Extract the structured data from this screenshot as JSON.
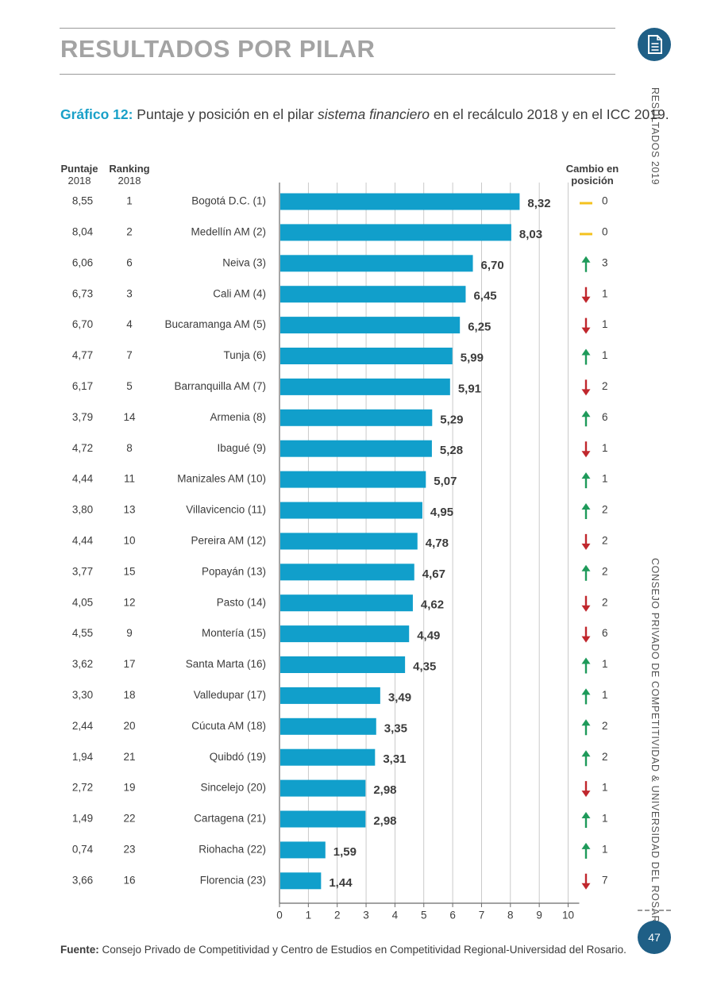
{
  "header": {
    "section_title": "RESULTADOS POR PILAR"
  },
  "caption": {
    "label": "Gráfico 12:",
    "text_before": " Puntaje y posición en el pilar ",
    "text_italic": "sistema financiero",
    "text_after": " en el recálculo 2018 y en el ICC 2019."
  },
  "side": {
    "results": "RESULTADOS  2019",
    "council": "CONSEJO PRIVADO DE COMPETITIVIDAD & UNIVERSIDAD DEL ROSARIO",
    "page_number": "47"
  },
  "columns": {
    "score_title": "Puntaje",
    "score_year": "2018",
    "rank_title": "Ranking",
    "rank_year": "2018",
    "change_line1": "Cambio en",
    "change_line2": "posición"
  },
  "source": {
    "label": "Fuente:",
    "text": " Consejo Privado de Competitividad y Centro de Estudios en Competitividad Regional-Universidad del Rosario."
  },
  "colors": {
    "bar": "#119fcb",
    "up": "#1e9a5a",
    "down": "#c0272d",
    "same": "#f4c21f",
    "accent": "#18a0c8",
    "badge": "#1f5f86"
  },
  "chart_data": {
    "type": "bar",
    "orientation": "horizontal",
    "categories": [
      "Bogotá D.C. (1)",
      "Medellín AM (2)",
      "Neiva (3)",
      "Cali AM (4)",
      "Bucaramanga AM (5)",
      "Tunja (6)",
      "Barranquilla AM (7)",
      "Armenia (8)",
      "Ibagué (9)",
      "Manizales AM (10)",
      "Villavicencio (11)",
      "Pereira AM (12)",
      "Popayán (13)",
      "Pasto (14)",
      "Montería (15)",
      "Santa Marta (16)",
      "Valledupar (17)",
      "Cúcuta AM (18)",
      "Quibdó (19)",
      "Sincelejo (20)",
      "Cartagena (21)",
      "Riohacha (22)",
      "Florencia (23)"
    ],
    "values": [
      8.32,
      8.03,
      6.7,
      6.45,
      6.25,
      5.99,
      5.91,
      5.29,
      5.28,
      5.07,
      4.95,
      4.78,
      4.67,
      4.62,
      4.49,
      4.35,
      3.49,
      3.35,
      3.31,
      2.98,
      2.98,
      1.59,
      1.44
    ],
    "value_labels": [
      "8,32",
      "8,03",
      "6,70",
      "6,45",
      "6,25",
      "5,99",
      "5,91",
      "5,29",
      "5,28",
      "5,07",
      "4,95",
      "4,78",
      "4,67",
      "4,62",
      "4,49",
      "4,35",
      "3,49",
      "3,35",
      "3,31",
      "2,98",
      "2,98",
      "1,59",
      "1,44"
    ],
    "score_2018": [
      "8,55",
      "8,04",
      "6,06",
      "6,73",
      "6,70",
      "4,77",
      "6,17",
      "3,79",
      "4,72",
      "4,44",
      "3,80",
      "4,44",
      "3,77",
      "4,05",
      "4,55",
      "3,62",
      "3,30",
      "2,44",
      "1,94",
      "2,72",
      "1,49",
      "0,74",
      "3,66"
    ],
    "ranking_2018": [
      "1",
      "2",
      "6",
      "3",
      "4",
      "7",
      "5",
      "14",
      "8",
      "11",
      "13",
      "10",
      "15",
      "12",
      "9",
      "17",
      "18",
      "20",
      "21",
      "19",
      "22",
      "23",
      "16"
    ],
    "change_direction": [
      "same",
      "same",
      "up",
      "down",
      "down",
      "up",
      "down",
      "up",
      "down",
      "up",
      "up",
      "down",
      "up",
      "down",
      "down",
      "up",
      "up",
      "up",
      "up",
      "down",
      "up",
      "up",
      "down"
    ],
    "change_value": [
      "0",
      "0",
      "3",
      "1",
      "1",
      "1",
      "2",
      "6",
      "1",
      "1",
      "2",
      "2",
      "2",
      "2",
      "6",
      "1",
      "1",
      "2",
      "2",
      "1",
      "1",
      "1",
      "7"
    ],
    "xlim": [
      0,
      10
    ],
    "xticks": [
      "0",
      "1",
      "2",
      "3",
      "4",
      "5",
      "6",
      "7",
      "8",
      "9",
      "10"
    ],
    "grid": true,
    "title": "",
    "xlabel": "",
    "ylabel": ""
  }
}
